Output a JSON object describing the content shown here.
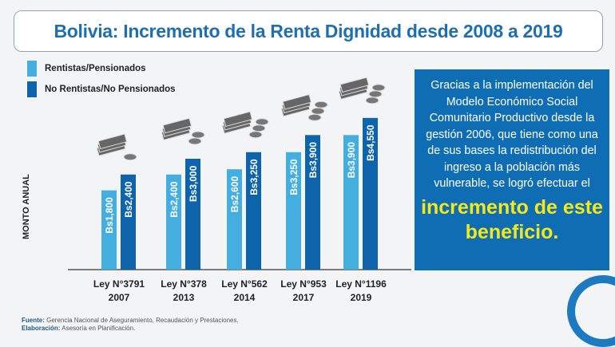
{
  "chart_data": {
    "type": "bar",
    "title": "Bolivia: Incremento de la Renta Dignidad desde 2008 a 2019",
    "ylabel": "MONTO ANUAL",
    "categories": [
      [
        "Ley N°3791",
        "2007"
      ],
      [
        "Ley N°378",
        "2013"
      ],
      [
        "Ley N°562",
        "2014"
      ],
      [
        "Ley N°953",
        "2017"
      ],
      [
        "Ley N°1196",
        "2019"
      ]
    ],
    "series": [
      {
        "name": "Rentistas/Pensionados",
        "color": "#45aee0",
        "values": [
          1800,
          2400,
          2600,
          3250,
          3900
        ],
        "labels": [
          "Bs1,800",
          "Bs2,400",
          "Bs2,600",
          "Bs3,250",
          "Bs3,900"
        ]
      },
      {
        "name": "No Rentistas/No Pensionados",
        "color": "#0d64aa",
        "values": [
          2400,
          3000,
          3250,
          3900,
          4550
        ],
        "labels": [
          "Bs2,400",
          "Bs3,000",
          "Bs3,250",
          "Bs3,900",
          "Bs4,550"
        ]
      }
    ]
  },
  "info": {
    "text": "Gracias a la implementación del Modelo Económico Social Comunitario Productivo desde la gestión 2006, que tiene como una de sus bases la redistribución del ingreso a la población más vulnerable, se logró efectuar el",
    "highlight": "incremento de este beneficio."
  },
  "source": {
    "label": "Fuente:",
    "text": "Gerencia Nacional de Aseguramiento, Recaudación y Prestaciones.",
    "label2": "Elaboración:",
    "text2": "Asesoría en Planificación."
  }
}
